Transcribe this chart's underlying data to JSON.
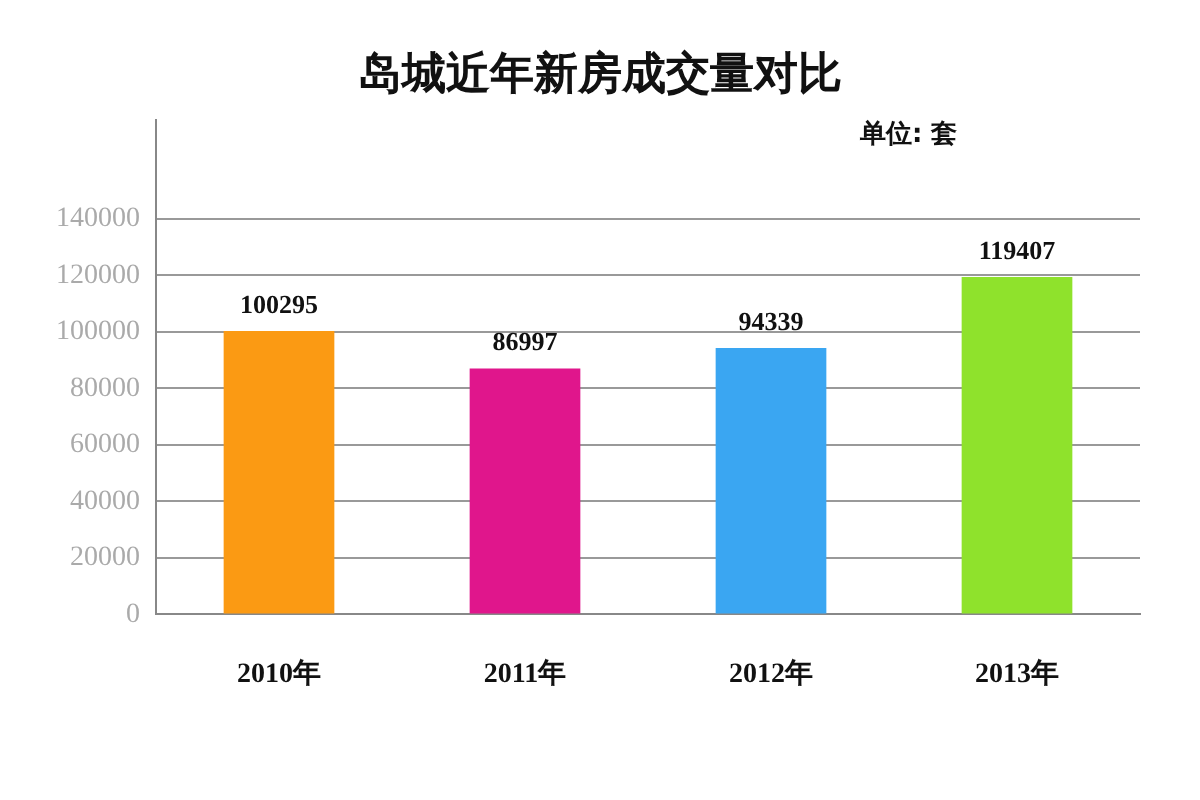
{
  "chart_data": {
    "type": "bar",
    "title": "岛城近年新房成交量对比",
    "annotations": [
      "单位: 套"
    ],
    "categories": [
      "2010年",
      "2011年",
      "2012年",
      "2013年"
    ],
    "values": [
      100295,
      86997,
      94339,
      119407
    ],
    "colors": [
      "#fb9a13",
      "#e0168c",
      "#3aa6f2",
      "#8fe22c"
    ],
    "ylim": [
      0,
      175000
    ],
    "yticks": [
      0,
      20000,
      40000,
      60000,
      80000,
      100000,
      120000,
      140000
    ],
    "grid": "y",
    "data_labels": true,
    "legend": false
  }
}
